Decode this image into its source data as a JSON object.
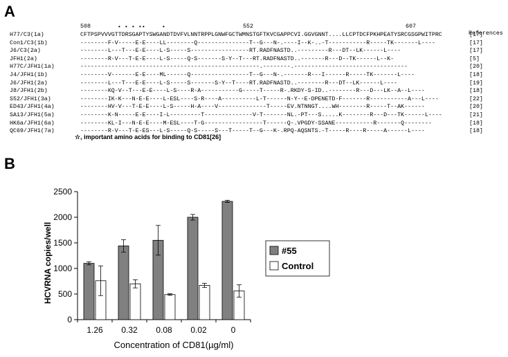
{
  "panel_a": {
    "letter": "A",
    "positions": {
      "start": "508",
      "mid": "552",
      "end": "607"
    },
    "references_header": "References",
    "rows": [
      {
        "name": "H77/C3(1a)",
        "seq": "CFTPSPVVVGTTDRSGAPTYSWGANDTDVFVLNNTRPPLGNWFGCTWMNSTGFTKVCGAPPCVI.GGVGNNT....LLCPTDCFPKHPEATYSRCGSGPWITPRC",
        "ref": "[17]"
      },
      {
        "name": "Con1/C3(1b)",
        "seq": "--------F-V-----E-E----LL--------Q---------------T--G---N-.----I--K-..-T-----------R-----TK-------L----",
        "ref": "[17]"
      },
      {
        "name": "J6/C3(2a)",
        "seq": "--------L---T---E-E----L-S-----S-----------------RT.RADFNASTD..---------R---DT--LK------L----",
        "ref": "[17]"
      },
      {
        "name": "JFH1(2a)",
        "seq": "--------R-V---T-E-E----L-S-----Q-S-------S-Y--T---RT.RADFNASTD..-------R---D--TK------L--K-",
        "ref": "[5]"
      },
      {
        "name": "H77C/JFH1(1a)",
        "seq": "----------------------------------------------------.--------.---------------------------------",
        "ref": "[20]"
      },
      {
        "name": "J4/JFH1(1b)",
        "seq": "--------V-------E-E----ML------Q-----------------T--G---N-.-------R---I------R-----TK-------L----",
        "ref": "[18]"
      },
      {
        "name": "J6/JFH1(2a)",
        "seq": "--------L---T---E-E----L-S-----S-------S-Y--T----RT.RADFNASTD..--------R---DT--LK------L----",
        "ref": "[19]"
      },
      {
        "name": "J8/JFH1(2b)",
        "seq": "--------KQ-V--T---E-E----L-S----R-A-----------G-----T-----R-.RKDY-S-ID..--------R---D---LK--A--L----",
        "ref": "[18]"
      },
      {
        "name": "S52/JFH1(3a)",
        "seq": "--------IK-K---N-E-E----L-ESL----S-R----A----------L-T------N-Y--E-DPENETD-F-------R-----------A---L----",
        "ref": "[22]"
      },
      {
        "name": "ED43/JFH1(4a)",
        "seq": "--------HV-V---T-E-E----L-S-----H-A----V--------------T-----EV.NTNNGT....WH--------R-----T--AK------",
        "ref": "[20]"
      },
      {
        "name": "SA13/JFH1(5a)",
        "seq": "--------K-N-----E-E----I-L---------T--------------V-T-------NL.-PT---S.....K--------R---D---TK------L----",
        "ref": "[21]"
      },
      {
        "name": "HK6a/JFH1(6a)",
        "seq": "--------KL-I---N-E-E----M-ESL----T-G-----------------T------Q-.VPGDY-SSANE-----------R-------Q--------",
        "ref": "[18]"
      },
      {
        "name": "QC69/JFH1(7a)",
        "seq": "--------R-V---T-E-ES---L-S-----Q-S-----S---T-----T--G---K-.RPQ-AQSNTS.-T-----R----R-----A------L----",
        "ref": "[18]"
      }
    ],
    "footnote": "☆, important amino acids for binding to CD81[26]"
  },
  "panel_b": {
    "letter": "B"
  },
  "chart_data": {
    "type": "bar",
    "categories": [
      "1.26",
      "0.32",
      "0.08",
      "0.02",
      "0"
    ],
    "series": [
      {
        "name": "#55",
        "color": "#808080",
        "values": [
          1100,
          1440,
          1550,
          2000,
          2310
        ],
        "errors": [
          30,
          120,
          290,
          55,
          20
        ]
      },
      {
        "name": "Control",
        "color": "#ffffff",
        "values": [
          760,
          700,
          490,
          670,
          560
        ],
        "errors": [
          290,
          80,
          15,
          40,
          120
        ]
      }
    ],
    "xlabel": "Concentration of CD81(µg/ml)",
    "ylabel": "HCVRNA copies/well",
    "yticks": [
      "0",
      "500",
      "1000",
      "1500",
      "2000",
      "2500"
    ],
    "ylim": [
      0,
      2500
    ],
    "legend_position": "right",
    "grid": false
  }
}
